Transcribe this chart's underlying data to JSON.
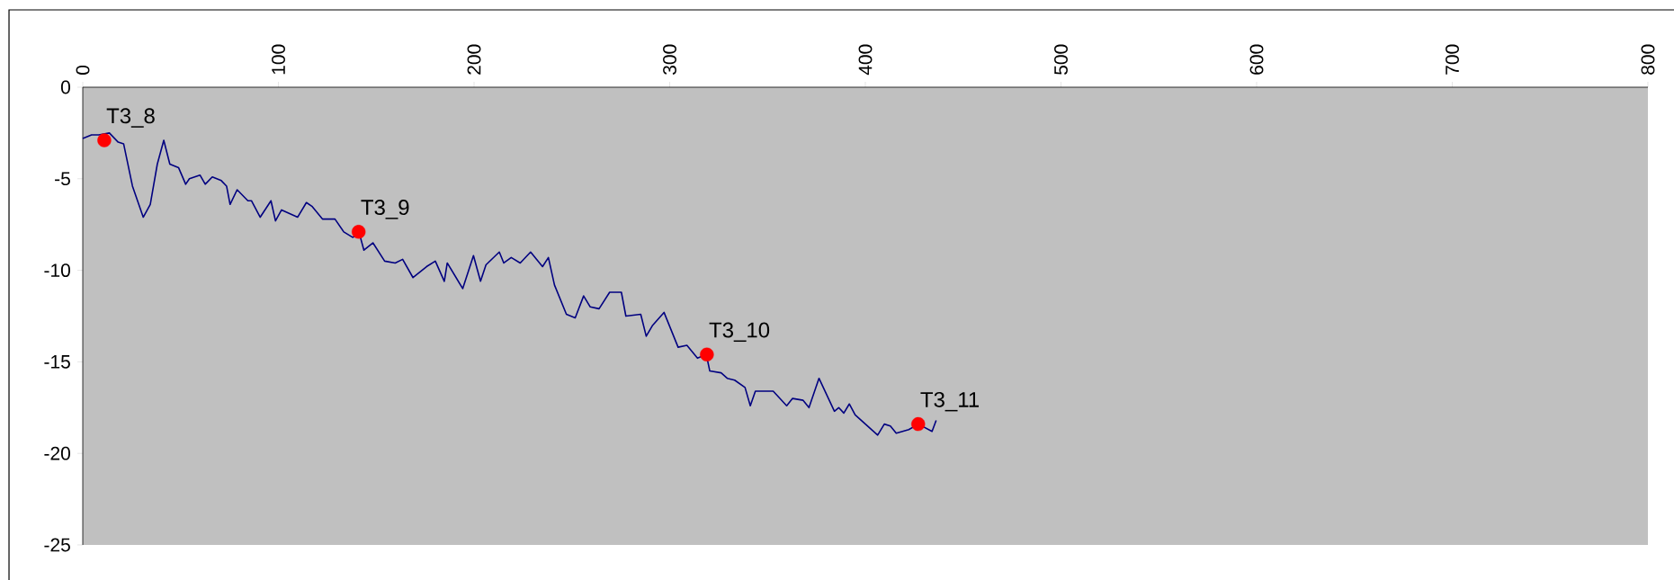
{
  "chart_data": {
    "type": "line",
    "xlim": [
      0,
      800
    ],
    "xticks": [
      0,
      100,
      200,
      300,
      400,
      500,
      600,
      700,
      800
    ],
    "ylim": [
      -25,
      0
    ],
    "yticks": [
      -25,
      -20,
      -15,
      -10,
      -5,
      0
    ],
    "series": [
      {
        "color": "#000080",
        "x": [
          0,
          4.5,
          8.2,
          13.6,
          18.1,
          20.9,
          25.4,
          30.9,
          34.5,
          38.1,
          41.4,
          44.5,
          49,
          52.6,
          54.5,
          59.9,
          62.6,
          66.2,
          70.8,
          73.5,
          75.3,
          78.9,
          84.4,
          86.2,
          90.7,
          96.2,
          98.5,
          101.6,
          109.8,
          114.3,
          117.1,
          122.5,
          128.9,
          133.4,
          137.9,
          141.4,
          143.7,
          148.3,
          154.3,
          159.7,
          163.5,
          168.8,
          175.7,
          180.2,
          184.8,
          186.3,
          194.2,
          199.7,
          203.3,
          206.1,
          212.9,
          215.2,
          219.0,
          223.6,
          228.9,
          235.0,
          238.0,
          241.1,
          247.2,
          251.7,
          256.0,
          259.4,
          263.9,
          269.3,
          275.3,
          277.6,
          285.2,
          288.0,
          291.3,
          297.1,
          304.3,
          308.8,
          314.2,
          318.7,
          320.5,
          326.3,
          329.4,
          333.2,
          338.5,
          341.2,
          343.8,
          352.9,
          359.8,
          362.8,
          368.2,
          371.2,
          376.3,
          384.2,
          386.4,
          389.0,
          391.8,
          394.8,
          406.3,
          409.7,
          412.8,
          415.8,
          422.2,
          427.1,
          434.1,
          436.2
        ],
        "values": [
          -2.8,
          -2.6,
          -2.6,
          -2.5,
          -3.0,
          -3.1,
          -5.4,
          -7.1,
          -6.4,
          -4.2,
          -2.9,
          -4.2,
          -4.4,
          -5.3,
          -5.0,
          -4.8,
          -5.3,
          -4.9,
          -5.1,
          -5.4,
          -6.4,
          -5.6,
          -6.2,
          -6.2,
          -7.1,
          -6.2,
          -7.3,
          -6.7,
          -7.1,
          -6.3,
          -6.5,
          -7.2,
          -7.2,
          -7.9,
          -8.2,
          -8.0,
          -8.9,
          -8.5,
          -9.5,
          -9.6,
          -9.4,
          -10.4,
          -9.8,
          -9.5,
          -10.6,
          -9.6,
          -11.0,
          -9.2,
          -10.6,
          -9.7,
          -9.0,
          -9.6,
          -9.3,
          -9.6,
          -9.0,
          -9.8,
          -9.3,
          -10.8,
          -12.4,
          -12.6,
          -11.4,
          -12.0,
          -12.1,
          -11.2,
          -11.2,
          -12.5,
          -12.4,
          -13.6,
          -13.0,
          -12.3,
          -14.2,
          -14.1,
          -14.8,
          -14.6,
          -15.5,
          -15.6,
          -15.9,
          -16.0,
          -16.4,
          -17.4,
          -16.6,
          -16.6,
          -17.4,
          -17.0,
          -17.1,
          -17.5,
          -15.9,
          -17.7,
          -17.5,
          -17.8,
          -17.3,
          -17.9,
          -19.0,
          -18.4,
          -18.5,
          -18.9,
          -18.7,
          -18.4,
          -18.8,
          -18.2
        ]
      },
      {
        "type": "scatter",
        "color": "#ff0000",
        "marker": "circle",
        "x": [
          11,
          141,
          319,
          427
        ],
        "values": [
          -2.9,
          -7.9,
          -14.6,
          -18.4
        ]
      }
    ],
    "annotations": [
      {
        "text": "T3_8",
        "x": 11,
        "y": -2.9
      },
      {
        "text": "T3_9",
        "x": 141,
        "y": -7.9
      },
      {
        "text": "T3_10",
        "x": 319,
        "y": -14.6
      },
      {
        "text": "T3_11",
        "x": 427,
        "y": -18.4
      }
    ]
  }
}
